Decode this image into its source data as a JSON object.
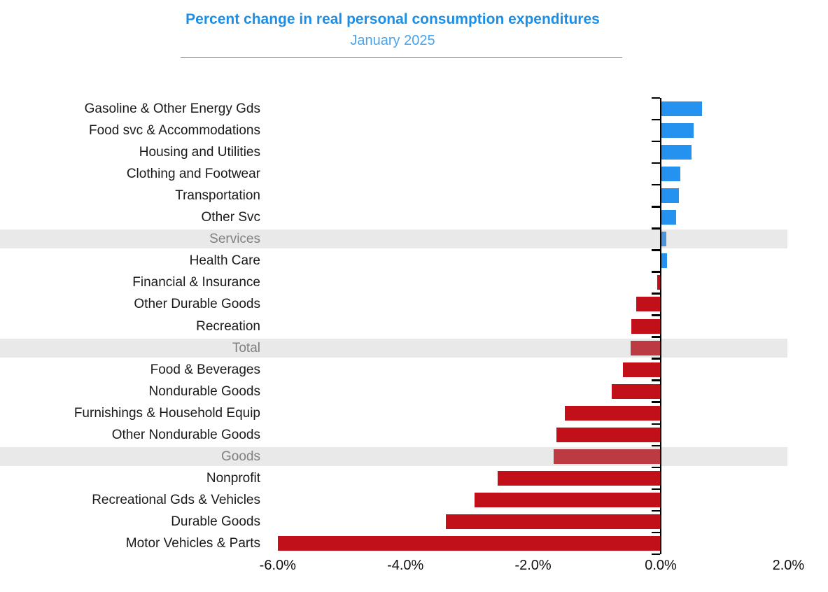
{
  "header": {
    "title": "Percent change in real personal consumption expenditures",
    "subtitle": "January 2025"
  },
  "colors": {
    "title": "#1b8fe8",
    "subtitle": "#49a4ec",
    "bar_positive": "#2492ee",
    "bar_negative": "#c2101b",
    "bar_positive_muted": "#4c95dc",
    "bar_negative_muted": "#bc3b43",
    "highlight_band": "#e9e9e9",
    "highlight_label": "#7f7f7f",
    "axis": "#000000"
  },
  "chart_data": {
    "type": "bar",
    "orientation": "horizontal",
    "title": "Percent change in real personal consumption expenditures",
    "subtitle": "January 2025",
    "unit": "%",
    "categories": [
      "Gasoline & Other Energy Gds",
      "Food svc & Accommodations",
      "Housing and Utilities",
      "Clothing and Footwear",
      "Transportation",
      "Other Svc",
      "Services",
      "Health Care",
      "Financial & Insurance",
      "Other Durable Goods",
      "Recreation",
      "Total",
      "Food & Beverages",
      "Nondurable Goods",
      "Furnishings & Household Equip",
      "Other Nondurable Goods",
      "Goods",
      "Nonprofit",
      "Recreational Gds & Vehicles",
      "Durable Goods",
      "Motor Vehicles & Parts"
    ],
    "values": [
      0.65,
      0.51,
      0.48,
      0.31,
      0.28,
      0.24,
      0.09,
      0.1,
      -0.05,
      -0.38,
      -0.46,
      -0.47,
      -0.59,
      -0.77,
      -1.5,
      -1.63,
      -1.68,
      -2.56,
      -2.92,
      -3.37,
      -6.0
    ],
    "highlight_rows": [
      "Services",
      "Total",
      "Goods"
    ],
    "x_ticks": {
      "labels": [
        "-6.0%",
        "-4.0%",
        "-2.0%",
        "0.0%",
        "2.0%"
      ],
      "values": [
        -6,
        -4,
        -2,
        0,
        2
      ]
    },
    "xlim": [
      -6.2,
      2.05
    ],
    "grid": false,
    "legend": "none",
    "value_labels_shown": false
  }
}
